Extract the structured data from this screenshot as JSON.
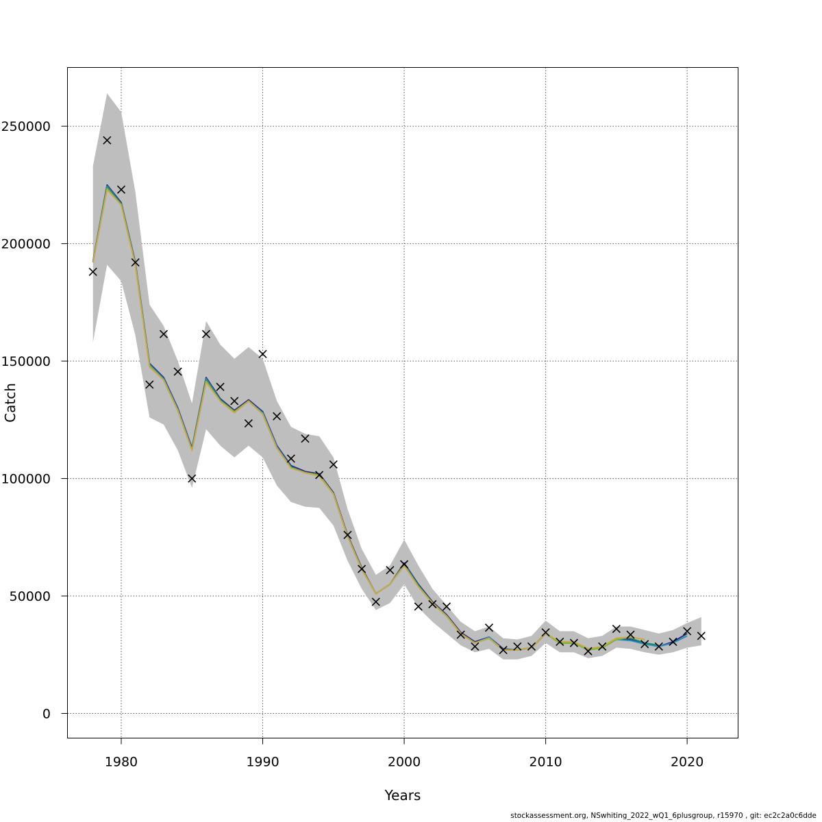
{
  "chart_data": {
    "type": "line",
    "xlabel": "Years",
    "ylabel": "Catch",
    "xlim": [
      1976.2,
      2023.6
    ],
    "ylim": [
      -10500,
      275000
    ],
    "x_ticks": [
      1980,
      1990,
      2000,
      2010,
      2020
    ],
    "x_tick_labels": [
      "1980",
      "1990",
      "2000",
      "2010",
      "2020"
    ],
    "y_ticks": [
      0,
      50000,
      100000,
      150000,
      200000,
      250000
    ],
    "y_tick_labels": [
      "0",
      "50000",
      "100000",
      "150000",
      "200000",
      "250000"
    ],
    "grid": true,
    "band_color": "#bebebe",
    "years": [
      1978,
      1979,
      1980,
      1981,
      1982,
      1983,
      1984,
      1985,
      1986,
      1987,
      1988,
      1989,
      1990,
      1991,
      1992,
      1993,
      1994,
      1995,
      1996,
      1997,
      1998,
      1999,
      2000,
      2001,
      2002,
      2003,
      2004,
      2005,
      2006,
      2007,
      2008,
      2009,
      2010,
      2011,
      2012,
      2013,
      2014,
      2015,
      2016,
      2017,
      2018,
      2019,
      2020,
      2021
    ],
    "band_upper": [
      233000,
      264000,
      256000,
      222000,
      174000,
      165000,
      150000,
      132000,
      167000,
      157000,
      151000,
      156000,
      151000,
      133000,
      122000,
      119000,
      118000,
      109000,
      87000,
      70000,
      59000,
      63000,
      74000,
      63000,
      53000,
      46000,
      39000,
      35000,
      37000,
      32000,
      31500,
      33000,
      39500,
      35000,
      35000,
      32000,
      33000,
      37000,
      37000,
      35500,
      34000,
      35500,
      38500,
      41000
    ],
    "band_lower": [
      158000,
      191000,
      184000,
      161000,
      126000,
      123000,
      112000,
      96000,
      121000,
      114000,
      109000,
      114000,
      109000,
      97000,
      90000,
      88000,
      87500,
      80000,
      65000,
      53000,
      44000,
      47000,
      55000,
      45000,
      39000,
      34000,
      29000,
      26000,
      27500,
      23000,
      23000,
      24500,
      30000,
      26000,
      26000,
      23500,
      24500,
      28000,
      27500,
      26000,
      25000,
      26000,
      28000,
      29000
    ],
    "series": [
      {
        "color": "#2e2a7e",
        "values": [
          192500,
          225000,
          217500,
          192000,
          149000,
          143000,
          130000,
          113000,
          143000,
          134000,
          129000,
          133500,
          128500,
          114000,
          105500,
          103000,
          102000,
          94000,
          76000,
          62000,
          51000,
          55000,
          64000,
          55000,
          47500,
          42000,
          34500,
          30500,
          32500,
          27500,
          27000,
          28000,
          34000,
          30000,
          30000,
          27500,
          28000,
          31500,
          31500,
          30000,
          28500,
          30500,
          34000,
          null
        ]
      },
      {
        "color": "#2b8fbf",
        "values": [
          192000,
          224500,
          217000,
          191500,
          148500,
          142500,
          129500,
          112500,
          142500,
          133500,
          128500,
          133000,
          128000,
          113500,
          105000,
          102500,
          101500,
          93500,
          75500,
          61500,
          51000,
          55000,
          63500,
          54500,
          47000,
          41500,
          34000,
          30000,
          32500,
          27000,
          27000,
          28000,
          34000,
          30000,
          30000,
          27000,
          28000,
          31500,
          31000,
          29500,
          28500,
          30000,
          33000,
          null
        ]
      },
      {
        "color": "#1a8a6e",
        "values": [
          192000,
          224000,
          217000,
          191500,
          148000,
          142000,
          129000,
          112500,
          142000,
          133500,
          128500,
          133000,
          127500,
          113000,
          105000,
          102500,
          101500,
          93500,
          75500,
          61500,
          51000,
          55000,
          63500,
          54500,
          47000,
          41500,
          34000,
          30000,
          32000,
          27000,
          27000,
          28000,
          34000,
          30000,
          30000,
          27000,
          28000,
          32000,
          32000,
          30000,
          29000,
          null,
          null,
          null
        ]
      },
      {
        "color": "#7cba2e",
        "values": [
          192000,
          223500,
          216500,
          191000,
          148000,
          142000,
          129000,
          112000,
          141500,
          133000,
          128500,
          133000,
          127500,
          113000,
          104500,
          102500,
          101500,
          93500,
          75500,
          61500,
          51000,
          55000,
          63000,
          54000,
          47000,
          41500,
          34000,
          30000,
          32000,
          27000,
          27000,
          28000,
          34000,
          30000,
          30000,
          27000,
          28000,
          31500,
          32500,
          null,
          null,
          null,
          null,
          null
        ]
      },
      {
        "color": "#c8a84b",
        "values": [
          192000,
          223000,
          216500,
          191000,
          147500,
          142000,
          129000,
          112000,
          141000,
          133000,
          128000,
          133000,
          127500,
          113000,
          104500,
          102500,
          101000,
          93500,
          75500,
          61500,
          51000,
          55000,
          63000,
          54000,
          47000,
          41500,
          34000,
          30000,
          32000,
          27000,
          27000,
          28000,
          34000,
          30500,
          30500,
          27500,
          28500,
          32000,
          32500,
          31500,
          null,
          null,
          null,
          null
        ]
      }
    ],
    "observed": [
      188000,
      244000,
      223000,
      192000,
      140000,
      161500,
      145500,
      100000,
      161500,
      139000,
      133000,
      123500,
      153000,
      126500,
      108500,
      117000,
      101500,
      106000,
      76000,
      61500,
      47500,
      61000,
      63500,
      45500,
      46500,
      45500,
      33500,
      28500,
      36500,
      27000,
      28500,
      28500,
      34500,
      30500,
      30000,
      26500,
      28500,
      36000,
      33500,
      29500,
      28500,
      30500,
      35000,
      33000
    ]
  },
  "footer": "stockassessment.org, NSwhiting_2022_wQ1_6plusgroup, r15970 , git: ec2c2a0c6dde"
}
